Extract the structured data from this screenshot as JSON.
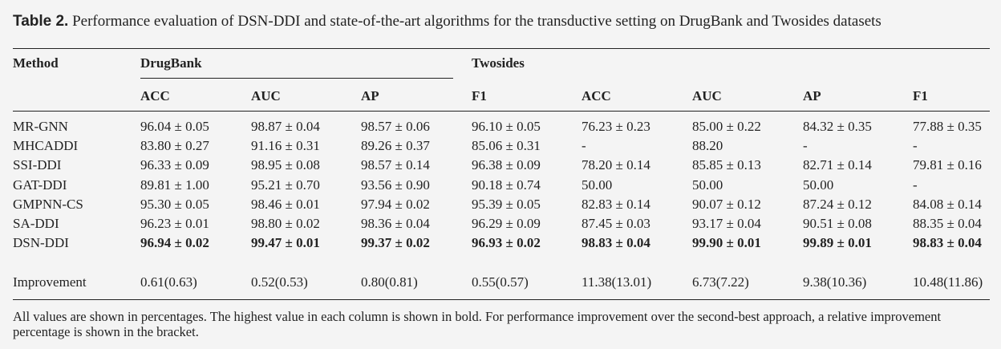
{
  "caption": {
    "label": "Table 2.",
    "text": "Performance evaluation of DSN-DDI and state-of-the-art algorithms for the transductive setting on DrugBank and Twosides datasets"
  },
  "table": {
    "header": {
      "method": "Method",
      "groups": [
        "DrugBank",
        "Twosides"
      ],
      "columns": [
        "ACC",
        "AUC",
        "AP",
        "F1",
        "ACC",
        "AUC",
        "AP",
        "F1"
      ]
    },
    "rows": [
      [
        "MR-GNN",
        "96.04 ± 0.05",
        "98.87 ± 0.04",
        "98.57 ± 0.06",
        "96.10 ± 0.05",
        "76.23 ± 0.23",
        "85.00 ± 0.22",
        "84.32 ± 0.35",
        "77.88 ± 0.35"
      ],
      [
        "MHCADDI",
        "83.80 ± 0.27",
        "91.16 ± 0.31",
        "89.26 ± 0.37",
        "85.06 ± 0.31",
        "-",
        "88.20",
        "-",
        "-"
      ],
      [
        "SSI-DDI",
        "96.33 ± 0.09",
        "98.95 ± 0.08",
        "98.57 ± 0.14",
        "96.38 ± 0.09",
        "78.20 ± 0.14",
        "85.85 ± 0.13",
        "82.71 ± 0.14",
        "79.81 ± 0.16"
      ],
      [
        "GAT-DDI",
        "89.81 ± 1.00",
        "95.21 ± 0.70",
        "93.56 ± 0.90",
        "90.18 ± 0.74",
        "50.00",
        "50.00",
        "50.00",
        "-"
      ],
      [
        "GMPNN-CS",
        "95.30 ± 0.05",
        "98.46 ± 0.01",
        "97.94 ± 0.02",
        "95.39 ± 0.05",
        "82.83 ± 0.14",
        "90.07 ± 0.12",
        "87.24 ± 0.12",
        "84.08 ± 0.14"
      ],
      [
        "SA-DDI",
        "96.23 ± 0.01",
        "98.80 ± 0.02",
        "98.36 ± 0.04",
        "96.29 ± 0.09",
        "87.45 ± 0.03",
        "93.17 ± 0.04",
        "90.51 ± 0.08",
        "88.35 ± 0.04"
      ],
      [
        "DSN-DDI",
        "96.94 ± 0.02",
        "99.47 ± 0.01",
        "99.37 ± 0.02",
        "96.93 ± 0.02",
        "98.83 ± 0.04",
        "99.90 ± 0.01",
        "99.89 ± 0.01",
        "98.83 ± 0.04"
      ],
      [
        "Improvement",
        "0.61(0.63)",
        "0.52(0.53)",
        "0.80(0.81)",
        "0.55(0.57)",
        "11.38(13.01)",
        "6.73(7.22)",
        "9.38(10.36)",
        "10.48(11.86)"
      ]
    ]
  },
  "footnote": "All values are shown in percentages. The highest value in each column is shown in bold. For performance improvement over the second-best approach, a relative improvement percentage is shown in the bracket."
}
